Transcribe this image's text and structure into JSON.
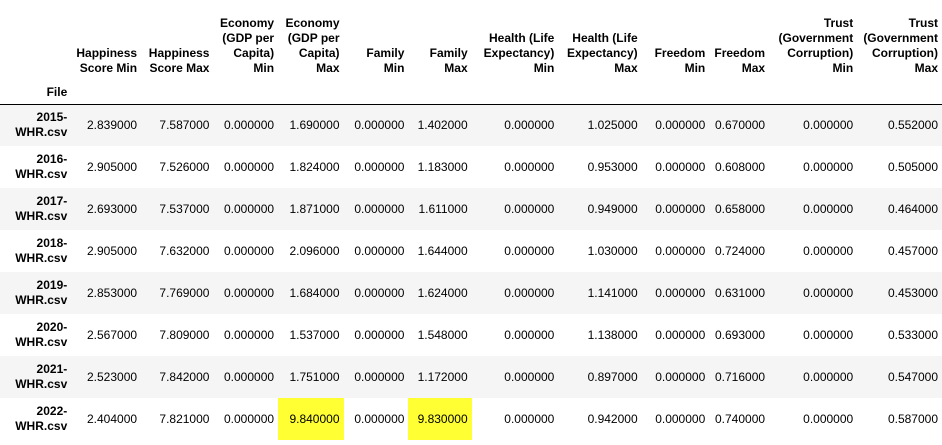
{
  "index_name": "File",
  "columns": [
    "Happiness Score Min",
    "Happiness Score Max",
    "Economy (GDP per Capita) Min",
    "Economy (GDP per Capita) Max",
    "Family Min",
    "Family Max",
    "Health (Life Expectancy) Min",
    "Health (Life Expectancy) Max",
    "Freedom Min",
    "Freedom Max",
    "Trust (Government Corruption) Min",
    "Trust (Government Corruption) Max"
  ],
  "rows": [
    {
      "file": "2015-WHR.csv",
      "values": [
        "2.839000",
        "7.587000",
        "0.000000",
        "1.690000",
        "0.000000",
        "1.402000",
        "0.000000",
        "1.025000",
        "0.000000",
        "0.670000",
        "0.000000",
        "0.552000"
      ]
    },
    {
      "file": "2016-WHR.csv",
      "values": [
        "2.905000",
        "7.526000",
        "0.000000",
        "1.824000",
        "0.000000",
        "1.183000",
        "0.000000",
        "0.953000",
        "0.000000",
        "0.608000",
        "0.000000",
        "0.505000"
      ]
    },
    {
      "file": "2017-WHR.csv",
      "values": [
        "2.693000",
        "7.537000",
        "0.000000",
        "1.871000",
        "0.000000",
        "1.611000",
        "0.000000",
        "0.949000",
        "0.000000",
        "0.658000",
        "0.000000",
        "0.464000"
      ]
    },
    {
      "file": "2018-WHR.csv",
      "values": [
        "2.905000",
        "7.632000",
        "0.000000",
        "2.096000",
        "0.000000",
        "1.644000",
        "0.000000",
        "1.030000",
        "0.000000",
        "0.724000",
        "0.000000",
        "0.457000"
      ]
    },
    {
      "file": "2019-WHR.csv",
      "values": [
        "2.853000",
        "7.769000",
        "0.000000",
        "1.684000",
        "0.000000",
        "1.624000",
        "0.000000",
        "1.141000",
        "0.000000",
        "0.631000",
        "0.000000",
        "0.453000"
      ]
    },
    {
      "file": "2020-WHR.csv",
      "values": [
        "2.567000",
        "7.809000",
        "0.000000",
        "1.537000",
        "0.000000",
        "1.548000",
        "0.000000",
        "1.138000",
        "0.000000",
        "0.693000",
        "0.000000",
        "0.533000"
      ]
    },
    {
      "file": "2021-WHR.csv",
      "values": [
        "2.523000",
        "7.842000",
        "0.000000",
        "1.751000",
        "0.000000",
        "1.172000",
        "0.000000",
        "0.897000",
        "0.000000",
        "0.716000",
        "0.000000",
        "0.547000"
      ]
    },
    {
      "file": "2022-WHR.csv",
      "values": [
        "2.404000",
        "7.821000",
        "0.000000",
        "9.840000",
        "0.000000",
        "9.830000",
        "0.000000",
        "0.942000",
        "0.000000",
        "0.740000",
        "0.000000",
        "0.587000"
      ]
    }
  ],
  "highlights": [
    {
      "row": 7,
      "col": 3
    },
    {
      "row": 7,
      "col": 5
    }
  ],
  "colors": {
    "highlight": "#ffff33",
    "stripe": "#f5f5f5",
    "rule": "#000000"
  }
}
